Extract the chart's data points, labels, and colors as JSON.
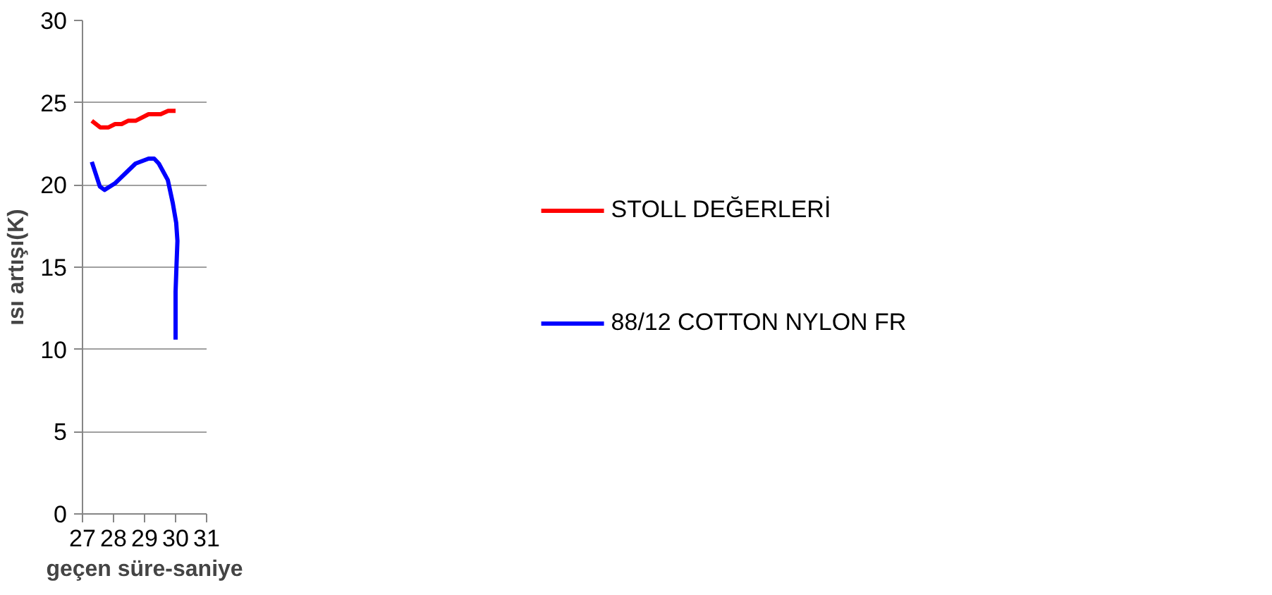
{
  "chart_data": {
    "type": "line",
    "xlabel": "geçen süre-saniye",
    "ylabel": "ısı artışı(K)",
    "xlim": [
      27,
      31
    ],
    "xticks": [
      27,
      28,
      29,
      30,
      31
    ],
    "ylim": [
      0,
      30
    ],
    "yticks": [
      0,
      5,
      10,
      15,
      20,
      25,
      30
    ],
    "grid": "y",
    "legend": "right",
    "marker": "none",
    "line_style": "solid",
    "series": [
      {
        "name": "STOLL DEĞERLERİ",
        "color": "#ff0000",
        "x": [
          27.3,
          27.57,
          27.84,
          28.05,
          28.26,
          28.47,
          28.71,
          29.13,
          29.52,
          29.76,
          30.0
        ],
        "values": [
          23.9,
          23.5,
          23.5,
          23.7,
          23.7,
          23.9,
          23.9,
          24.3,
          24.3,
          24.5,
          24.5
        ]
      },
      {
        "name": "88/12 COTTON NYLON FR",
        "color": "#0000ff",
        "x": [
          27.3,
          27.44,
          27.56,
          27.71,
          28.05,
          28.38,
          28.71,
          29.13,
          29.31,
          29.46,
          29.75,
          29.91,
          30.02,
          30.06,
          30.03,
          30.0,
          30.0
        ],
        "values": [
          21.4,
          20.6,
          19.9,
          19.7,
          20.1,
          20.7,
          21.3,
          21.6,
          21.6,
          21.3,
          20.3,
          18.9,
          17.7,
          16.6,
          15.1,
          13.5,
          10.6
        ]
      }
    ]
  }
}
